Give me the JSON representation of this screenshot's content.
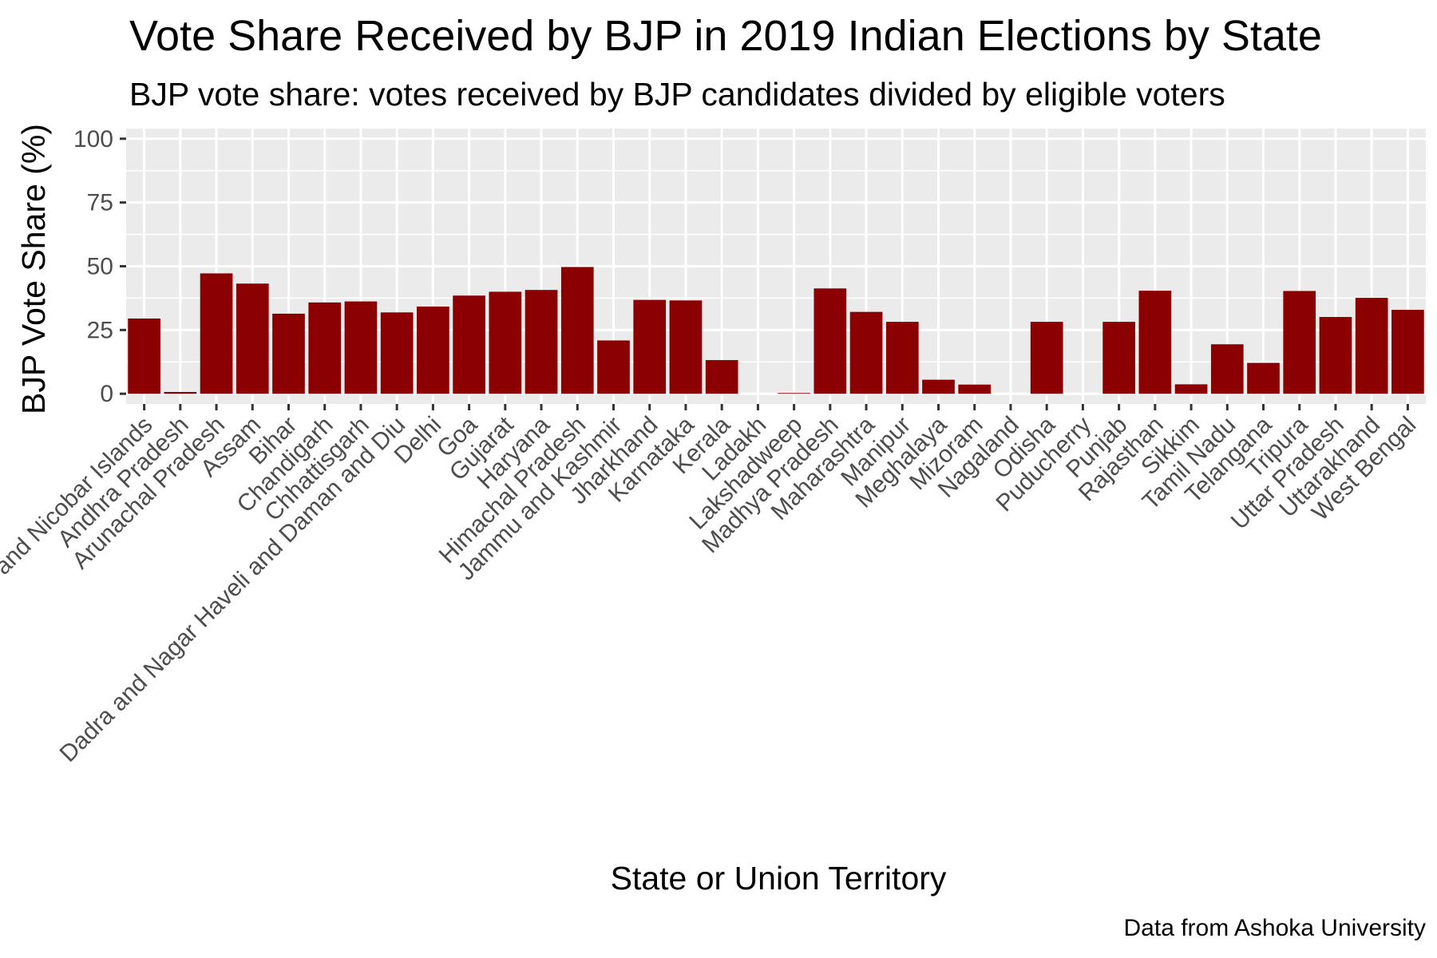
{
  "chart_data": {
    "type": "bar",
    "title": "Vote Share Received by BJP in 2019 Indian Elections by State",
    "subtitle": "BJP vote share: votes received by BJP candidates divided by eligible voters",
    "xlabel": "State or Union Territory",
    "ylabel": "BJP Vote Share (%)",
    "caption": "Data from Ashoka University",
    "ylim": [
      -4,
      104
    ],
    "yticks": [
      0,
      25,
      50,
      75,
      100
    ],
    "grid": true,
    "legend": "none",
    "bar_color": "#8B0000",
    "panel_color": "#EBEBEB",
    "grid_color": "#FFFFFF",
    "categories": [
      "Andaman and Nicobar Islands",
      "Andhra Pradesh",
      "Arunachal Pradesh",
      "Assam",
      "Bihar",
      "Chandigarh",
      "Chhattisgarh",
      "Dadra and Nagar Haveli and Daman and Diu",
      "Delhi",
      "Goa",
      "Gujarat",
      "Haryana",
      "Himachal Pradesh",
      "Jammu and Kashmir",
      "Jharkhand",
      "Karnataka",
      "Kerala",
      "Ladakh",
      "Lakshadweep",
      "Madhya Pradesh",
      "Maharashtra",
      "Manipur",
      "Meghalaya",
      "Mizoram",
      "Nagaland",
      "Odisha",
      "Puducherry",
      "Punjab",
      "Rajasthan",
      "Sikkim",
      "Tamil Nadu",
      "Telangana",
      "Tripura",
      "Uttar Pradesh",
      "Uttarakhand",
      "West Bengal"
    ],
    "values": [
      29.5,
      0.7,
      47.2,
      43.2,
      31.4,
      35.8,
      36.2,
      31.9,
      34.2,
      38.5,
      40.0,
      40.7,
      49.7,
      20.9,
      36.8,
      36.6,
      13.2,
      null,
      0.3,
      41.3,
      32.1,
      28.2,
      5.5,
      3.6,
      null,
      28.2,
      null,
      28.2,
      40.4,
      3.7,
      19.4,
      12.1,
      40.3,
      30.1,
      37.6,
      32.9
    ]
  }
}
